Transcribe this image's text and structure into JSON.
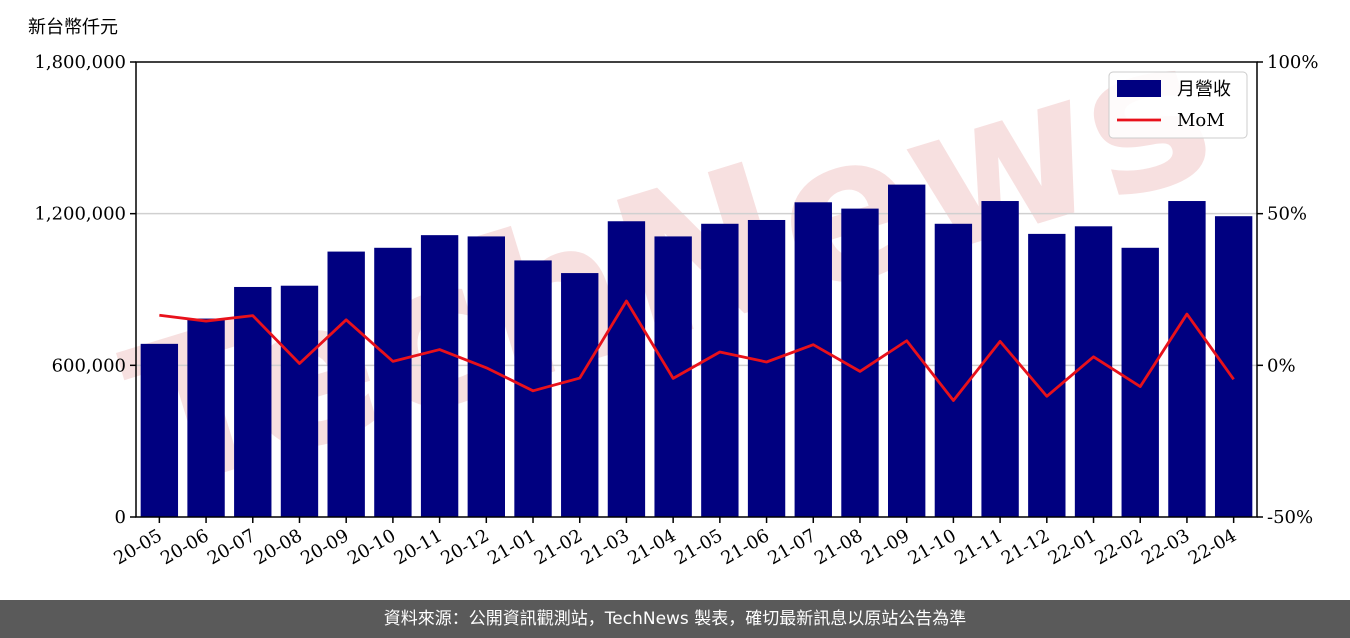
{
  "y_unit_label": "新台幣仟元",
  "footer": {
    "source_text": "資料來源：公開資訊觀測站，TechNews 製表，確切最新訊息以原站公告為準"
  },
  "watermark": "TechNews",
  "colors": {
    "bar": "#000080",
    "line": "#e8111b",
    "footer_bg": "#5a5a5a",
    "grid": "#d0d0d0",
    "watermark": "#f2c8c8"
  },
  "chart_data": {
    "type": "bar",
    "categories": [
      "20-05",
      "20-06",
      "20-07",
      "20-08",
      "20-09",
      "20-10",
      "20-11",
      "20-12",
      "21-01",
      "21-02",
      "21-03",
      "21-04",
      "21-05",
      "21-06",
      "21-07",
      "21-08",
      "21-09",
      "21-10",
      "21-11",
      "21-12",
      "22-01",
      "22-02",
      "22-03",
      "22-04"
    ],
    "series": [
      {
        "name": "月營收",
        "type": "bar",
        "axis": "left",
        "values": [
          685000,
          785000,
          910000,
          915000,
          1050000,
          1065000,
          1115000,
          1110000,
          1015000,
          965000,
          1170000,
          1110000,
          1160000,
          1175000,
          1245000,
          1220000,
          1315000,
          1160000,
          1250000,
          1120000,
          1150000,
          1065000,
          1250000,
          1190000
        ]
      },
      {
        "name": "MoM",
        "type": "line",
        "axis": "right",
        "values": [
          16.5,
          14.6,
          16.4,
          0.6,
          15.0,
          1.3,
          5.2,
          -0.8,
          -8.4,
          -4.2,
          21.2,
          -4.3,
          4.4,
          1.1,
          6.8,
          -2.0,
          8.1,
          -11.6,
          7.9,
          -10.2,
          2.8,
          -7.0,
          16.9,
          -4.6
        ]
      }
    ],
    "y_left": {
      "lim": [
        0,
        1800000
      ],
      "ticks": [
        "0",
        "600,000",
        "1,200,000",
        "1,800,000"
      ],
      "tick_values": [
        0,
        600000,
        1200000,
        1800000
      ]
    },
    "y_right": {
      "lim": [
        -50,
        100
      ],
      "ticks": [
        "-50%",
        "0%",
        "50%",
        "100%"
      ],
      "tick_values": [
        -50,
        0,
        50,
        100
      ]
    },
    "grid": "horizontal",
    "legend": {
      "placement": "top-right",
      "entries": [
        "月營收",
        "MoM"
      ]
    }
  }
}
